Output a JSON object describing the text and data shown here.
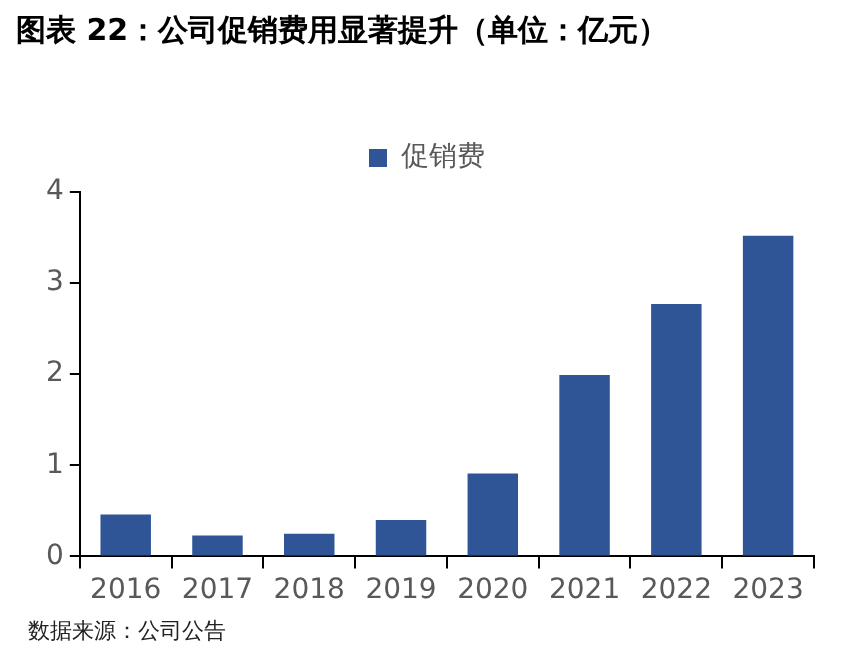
{
  "chart_data": {
    "type": "bar",
    "title": "图表 22：公司促销费用显著提升（单位：亿元）",
    "categories": [
      "2016",
      "2017",
      "2018",
      "2019",
      "2020",
      "2021",
      "2022",
      "2023"
    ],
    "series": [
      {
        "name": "促销费",
        "color": "#2f5597",
        "values": [
          0.46,
          0.23,
          0.25,
          0.4,
          0.91,
          1.99,
          2.77,
          3.52
        ]
      }
    ],
    "ylim": [
      0,
      4
    ],
    "yticks": [
      0,
      1,
      2,
      3,
      4
    ],
    "grid": false,
    "legend": "top",
    "annotations": [
      "数据来源：公司公告"
    ]
  }
}
